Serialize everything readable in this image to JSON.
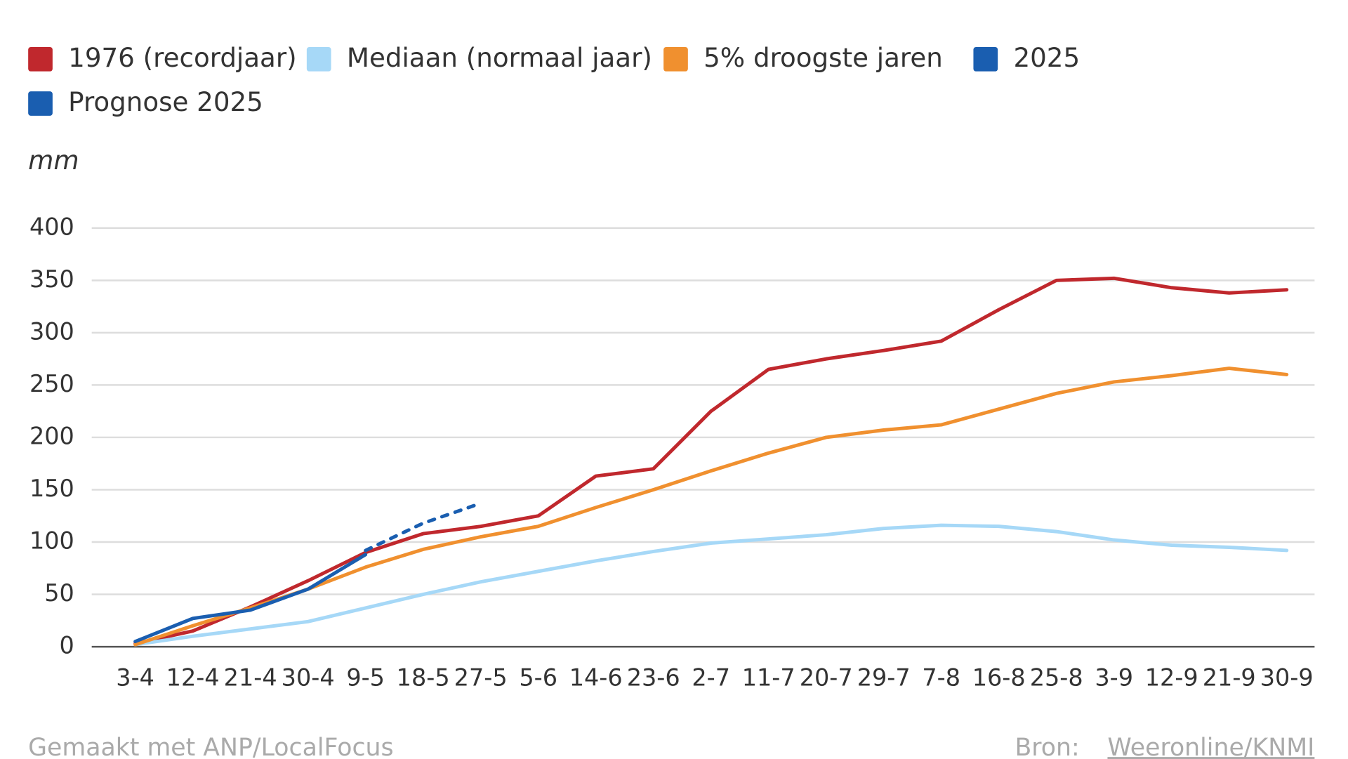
{
  "chart_data": {
    "type": "line",
    "y_label": "mm",
    "categories": [
      "3-4",
      "12-4",
      "21-4",
      "30-4",
      "9-5",
      "18-5",
      "27-5",
      "5-6",
      "14-6",
      "23-6",
      "2-7",
      "11-7",
      "20-7",
      "29-7",
      "7-8",
      "16-8",
      "25-8",
      "3-9",
      "12-9",
      "21-9",
      "30-9"
    ],
    "series": [
      {
        "name": "1976 (recordjaar)",
        "color": "#c0282d",
        "values": [
          3,
          15,
          38,
          63,
          90,
          108,
          115,
          125,
          163,
          170,
          225,
          265,
          275,
          283,
          292,
          322,
          350,
          352,
          343,
          338,
          341
        ]
      },
      {
        "name": "Mediaan (normaal jaar)",
        "color": "#a6d8f7",
        "values": [
          2,
          10,
          17,
          24,
          37,
          50,
          62,
          72,
          82,
          91,
          99,
          103,
          107,
          113,
          116,
          115,
          110,
          102,
          97,
          95,
          92
        ]
      },
      {
        "name": "5% droogste jaren",
        "color": "#f0902f",
        "values": [
          2,
          20,
          37,
          55,
          76,
          93,
          105,
          115,
          133,
          150,
          168,
          185,
          200,
          207,
          212,
          227,
          242,
          253,
          259,
          266,
          260
        ]
      },
      {
        "name": "2025",
        "color": "#1a5eb0",
        "values": [
          5,
          27,
          35,
          55,
          88,
          null,
          null,
          null,
          null,
          null,
          null,
          null,
          null,
          null,
          null,
          null,
          null,
          null,
          null,
          null,
          null
        ]
      },
      {
        "name": "Prognose 2025",
        "color": "#1a5eb0",
        "dashed": true,
        "values": [
          null,
          null,
          null,
          null,
          92,
          118,
          137,
          null,
          null,
          null,
          null,
          null,
          null,
          null,
          null,
          null,
          null,
          null,
          null,
          null,
          null
        ]
      }
    ],
    "ylim": [
      0,
      400
    ],
    "yticks": [
      0,
      50,
      100,
      150,
      200,
      250,
      300,
      350,
      400
    ],
    "grid": true,
    "credit": "Gemaakt met ANP/LocalFocus",
    "source_label": "Bron:",
    "source": "Weeronline/KNMI"
  }
}
